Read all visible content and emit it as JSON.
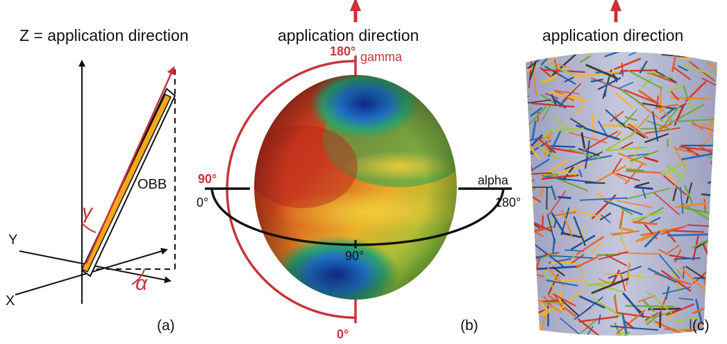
{
  "panel_a": {
    "title": "Z = application direction",
    "labels": {
      "y_axis": "Y",
      "x_axis": "X",
      "obb": "OBB",
      "gamma_symbol": "γ",
      "alpha_symbol": "α"
    },
    "caption": "(a)"
  },
  "panel_b": {
    "title": "application direction",
    "labels": {
      "gamma": "gamma",
      "gamma_top": "180°",
      "gamma_bottom": "0°",
      "alpha": "alpha",
      "alpha_left": "0°",
      "alpha_right": "180°",
      "alpha_mid": "90°",
      "gamma_mid": "90°"
    },
    "caption": "(b)"
  },
  "panel_c": {
    "title": "application direction",
    "caption": "(c)"
  },
  "colors": {
    "accent_red": "#c8343a",
    "fiber_orange": "#f5a81c",
    "axis_black": "#111111"
  }
}
